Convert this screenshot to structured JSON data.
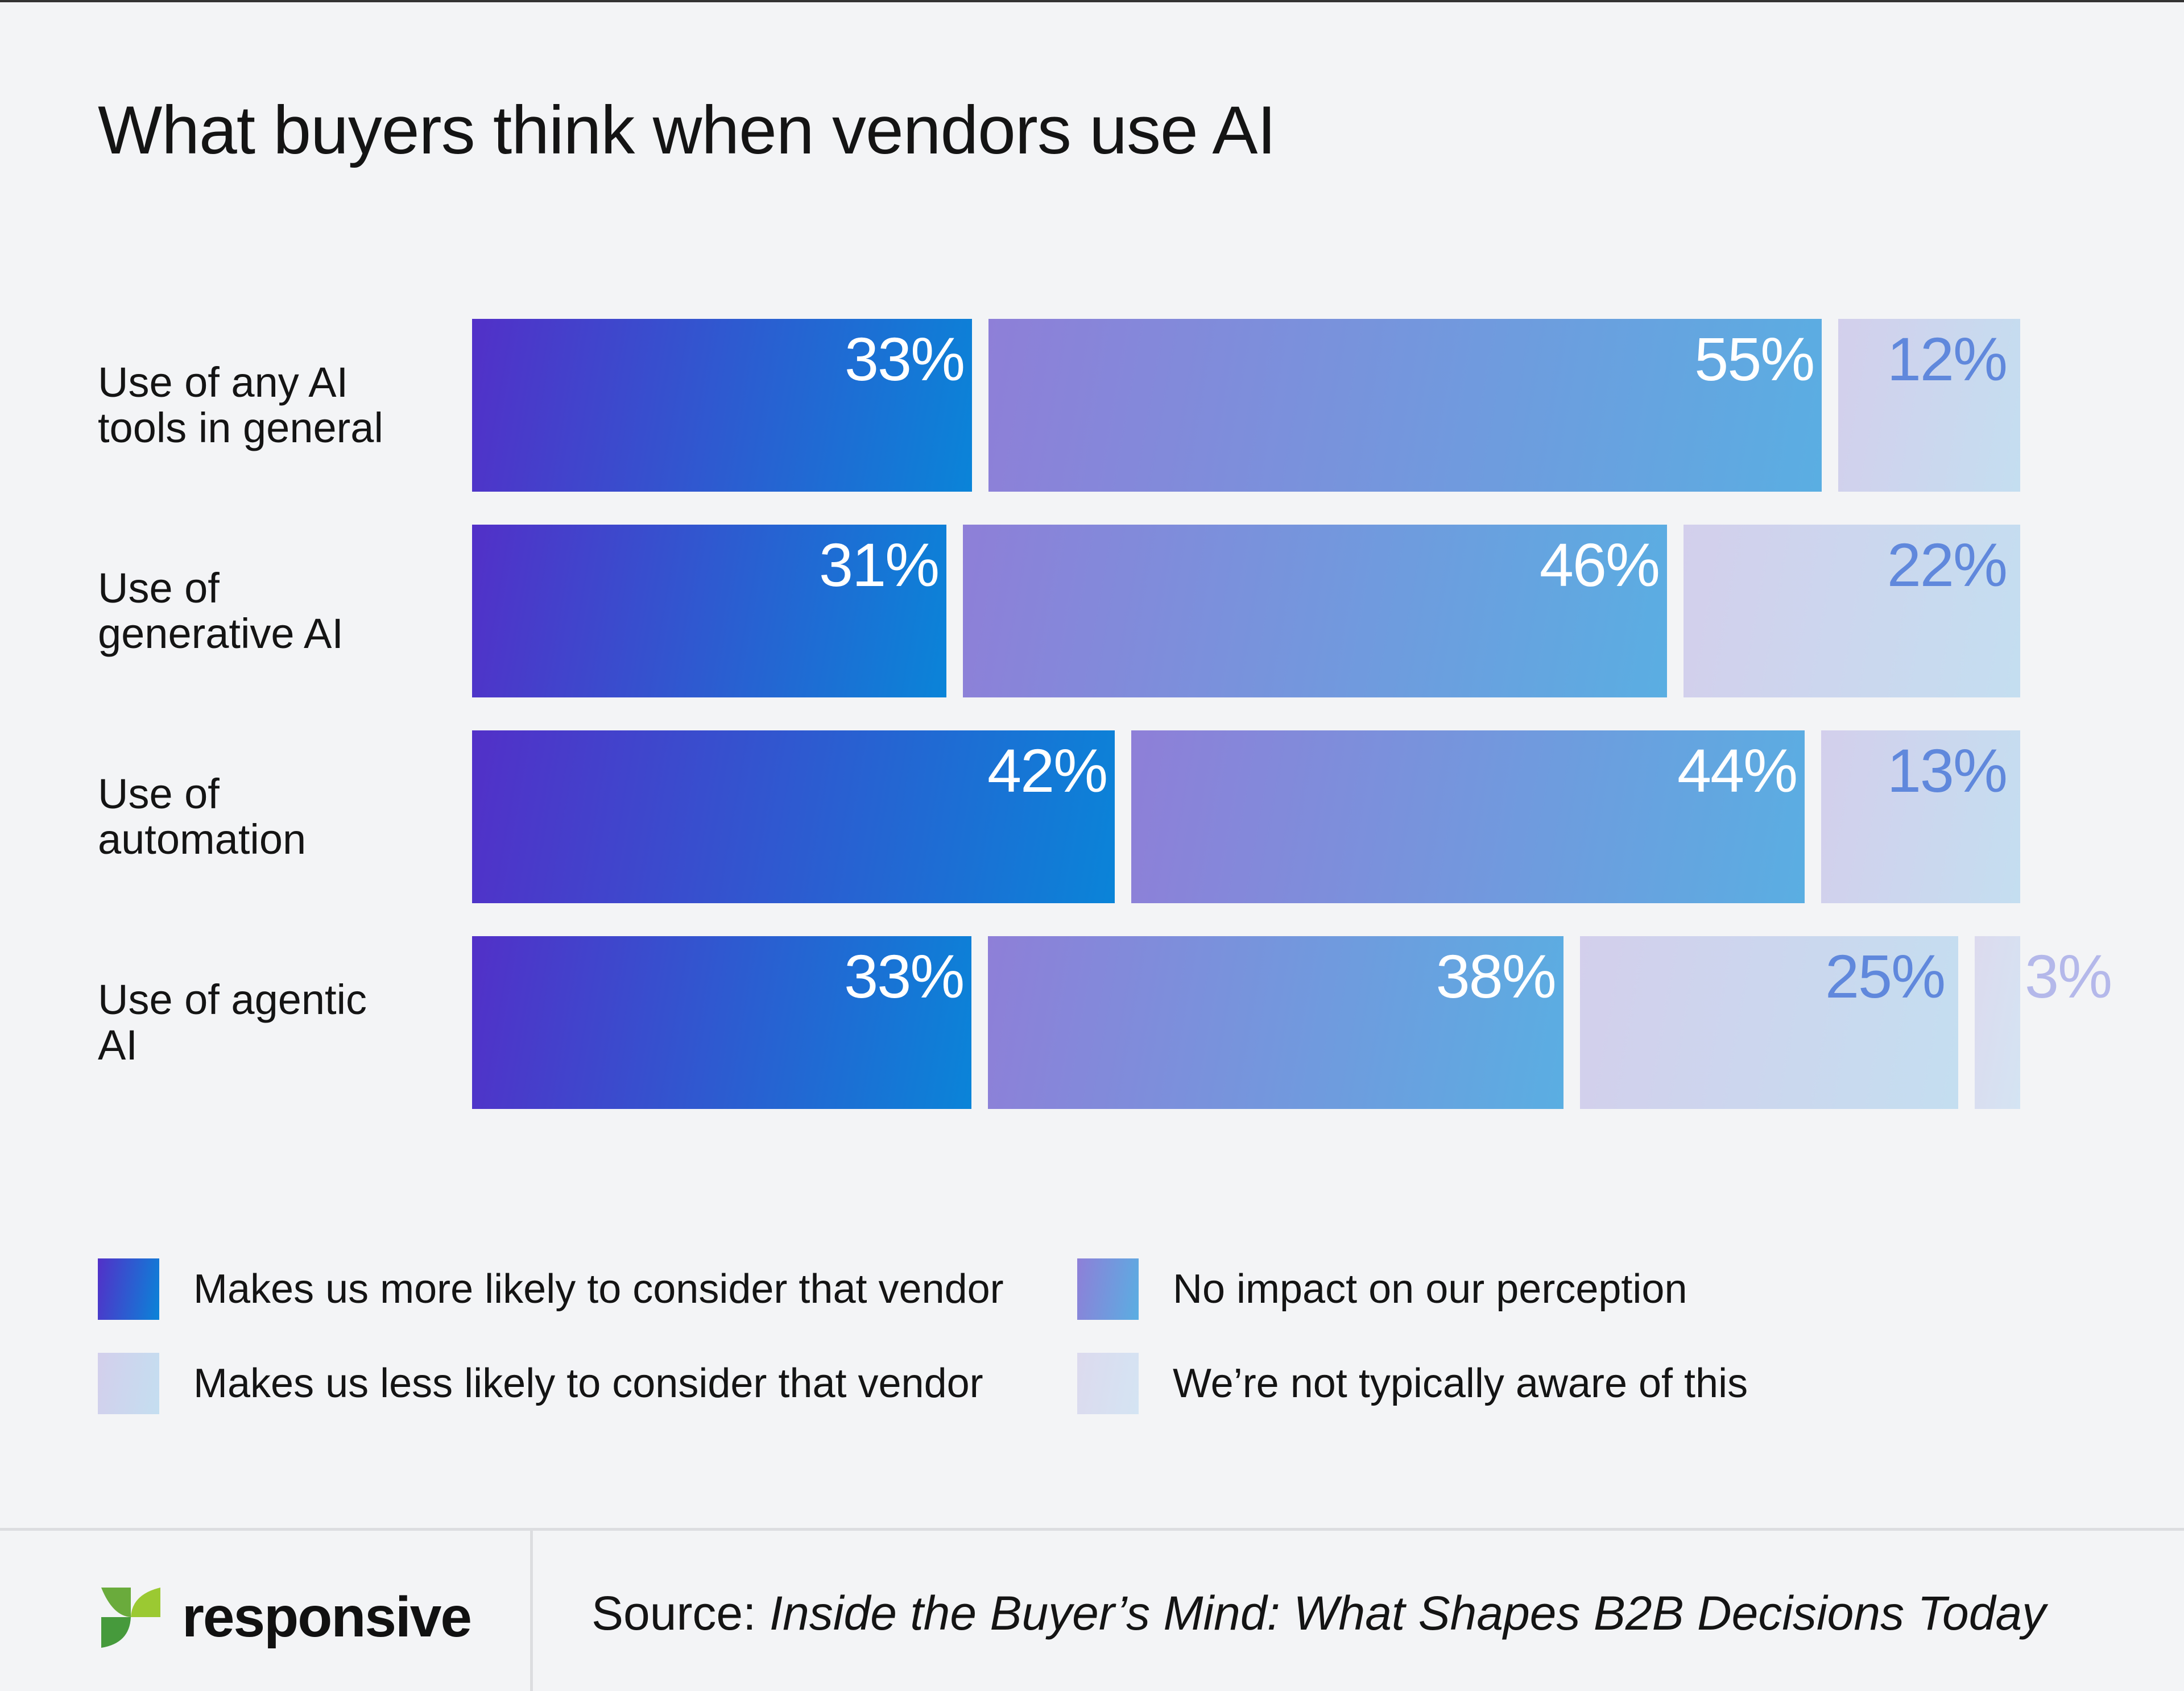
{
  "chart_data": {
    "type": "bar",
    "orientation": "horizontal",
    "stacked": true,
    "title": "What buyers think when vendors use AI",
    "categories": [
      "Use of any AI tools in general",
      "Use of generative AI",
      "Use of automation",
      "Use of agentic AI"
    ],
    "category_lines": [
      [
        "Use of any AI",
        "tools in general"
      ],
      [
        "Use of",
        "generative AI"
      ],
      [
        "Use of",
        "automation"
      ],
      [
        "Use of agentic",
        "AI"
      ]
    ],
    "series": [
      {
        "name": "Makes us more likely to consider that vendor",
        "values": [
          33,
          31,
          42,
          33
        ],
        "colors": [
          "#5230c8",
          "#0a84d8"
        ]
      },
      {
        "name": "No impact on our perception",
        "values": [
          55,
          46,
          44,
          38
        ],
        "colors": [
          "#8e7fd8",
          "#5aaee2"
        ]
      },
      {
        "name": "Makes us less likely to consider that vendor",
        "values": [
          12,
          22,
          13,
          25
        ],
        "colors": [
          "#d3cfec",
          "#c4def0"
        ]
      },
      {
        "name": "We’re not typically aware of this",
        "values": [
          0,
          0,
          0,
          3
        ],
        "colors": [
          "#dcdaee",
          "#d4e4f3"
        ]
      }
    ],
    "value_format": "{v}%",
    "legend_position": "bottom",
    "grid": false
  },
  "footer": {
    "logo_text": "responsive",
    "source_label": "Source:",
    "source_title": "Inside the Buyer’s Mind: What Shapes B2B Decisions Today"
  }
}
